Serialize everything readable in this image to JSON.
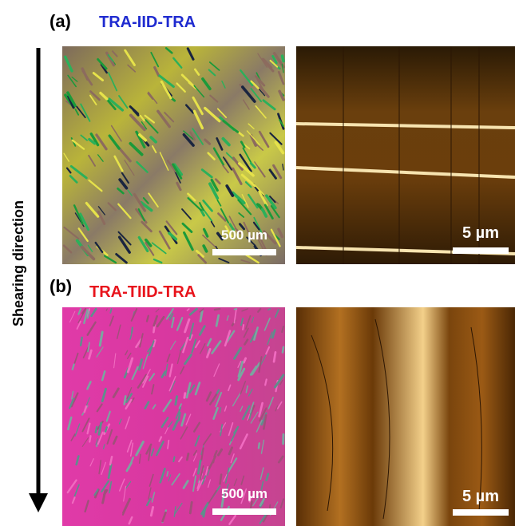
{
  "arrow_label": "Shearing direction",
  "panels": [
    {
      "label": "(a)",
      "title": "TRA-IID-TRA",
      "images": [
        {
          "scale_bar": "500 µm"
        },
        {
          "scale_bar": "5 µm"
        }
      ]
    },
    {
      "label": "(b)",
      "title": "TRA-TIID-TRA",
      "images": [
        {
          "scale_bar": "500 µm"
        },
        {
          "scale_bar": "5 µm"
        }
      ]
    }
  ]
}
